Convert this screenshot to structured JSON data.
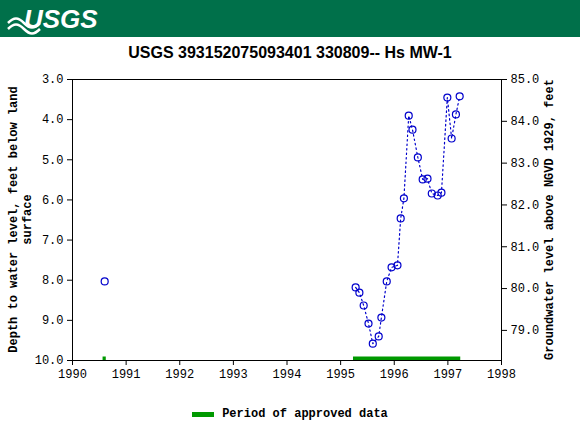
{
  "header": {
    "logo": "USGS"
  },
  "chart_data": {
    "type": "line",
    "title": "USGS 393152075093401 330809-- Hs MW-1",
    "y_label": "Depth to water level, feet below land surface",
    "y2_label": "Groundwater level above NGVD 1929, feet",
    "x": [
      1990.6,
      null,
      1995.28,
      1995.35,
      1995.43,
      1995.52,
      1995.6,
      1995.71,
      1995.76,
      1995.86,
      1995.95,
      1996.06,
      1996.12,
      1996.18,
      1996.27,
      1996.34,
      1996.44,
      1996.53,
      1996.62,
      1996.7,
      1996.81,
      1996.88,
      1996.99,
      1997.07,
      1997.15,
      1997.22
    ],
    "series": [
      {
        "color": "#0000cc",
        "marker": "circle",
        "line_style": "dotted",
        "values": [
          8.03,
          null,
          8.18,
          8.31,
          8.63,
          9.08,
          9.58,
          9.4,
          8.93,
          8.03,
          7.68,
          7.63,
          6.46,
          5.96,
          3.9,
          4.25,
          4.94,
          5.49,
          5.47,
          5.84,
          5.89,
          5.82,
          3.45,
          4.47,
          3.87,
          3.42
        ]
      }
    ],
    "approved_periods": {
      "name": "Period of approved data",
      "color": "#009900",
      "ranges": [
        [
          1990.57,
          1990.63
        ],
        [
          1995.24,
          1997.24
        ]
      ]
    },
    "legend": "bottom",
    "xlim": [
      1990,
      1998
    ],
    "xticks": [
      1990,
      1991,
      1992,
      1993,
      1994,
      1995,
      1996,
      1997,
      1998
    ],
    "ylim": [
      10,
      3
    ],
    "yticks": [
      {
        "value": 3,
        "label": "3.0"
      },
      {
        "value": 4,
        "label": "4.0"
      },
      {
        "value": 5,
        "label": "5.0"
      },
      {
        "value": 6,
        "label": "6.0"
      },
      {
        "value": 7,
        "label": "7.0"
      },
      {
        "value": 8,
        "label": "8.0"
      },
      {
        "value": 9,
        "label": "9.0"
      },
      {
        "value": 10,
        "label": "10.0"
      }
    ],
    "y2lim": [
      78.28,
      85.0
    ],
    "y2ticks": [
      {
        "value": 79,
        "label": "79.0"
      },
      {
        "value": 80,
        "label": "80.0"
      },
      {
        "value": 81,
        "label": "81.0"
      },
      {
        "value": 82,
        "label": "82.0"
      },
      {
        "value": 83,
        "label": "83.0"
      },
      {
        "value": 84,
        "label": "84.0"
      },
      {
        "value": 85,
        "label": "85.0"
      }
    ]
  }
}
